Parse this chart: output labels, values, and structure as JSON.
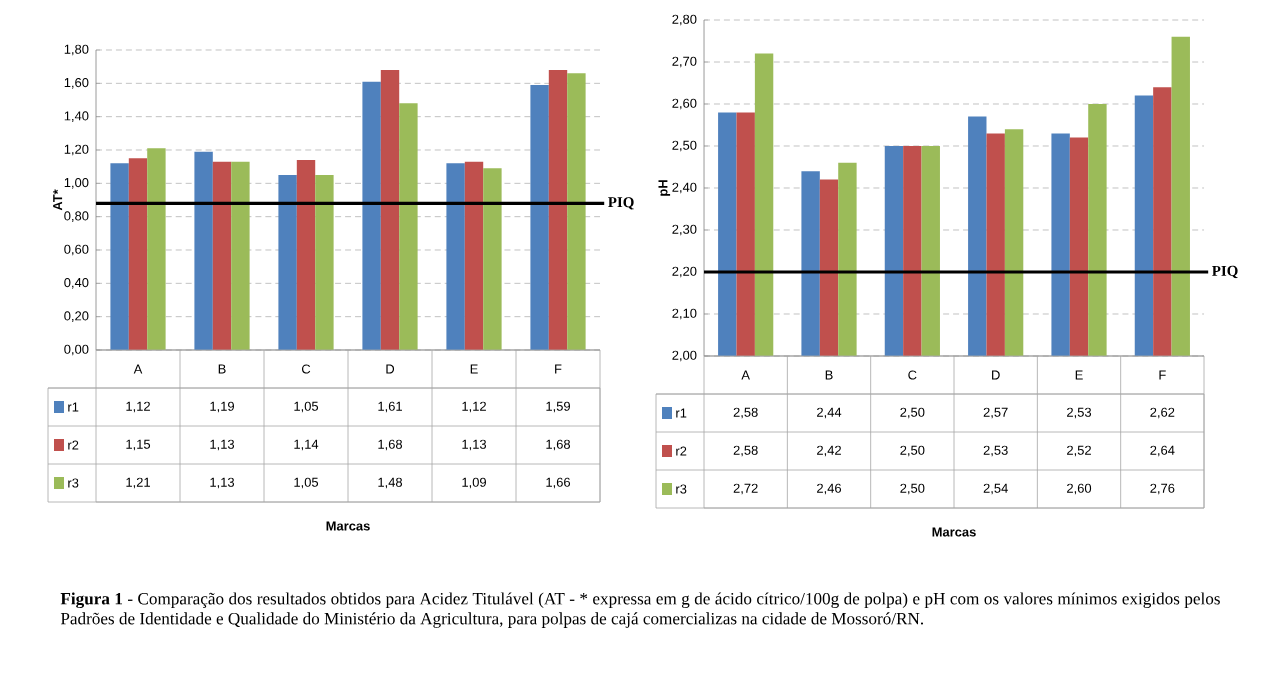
{
  "chart_data": [
    {
      "type": "bar",
      "ylabel": "AT*",
      "xlabel": "Marcas",
      "categories": [
        "A",
        "B",
        "C",
        "D",
        "E",
        "F"
      ],
      "series": [
        {
          "name": "r1",
          "color": "#4f81bd",
          "values": [
            1.12,
            1.19,
            1.05,
            1.61,
            1.12,
            1.59
          ],
          "value_labels": [
            "1,12",
            "1,19",
            "1,05",
            "1,61",
            "1,12",
            "1,59"
          ]
        },
        {
          "name": "r2",
          "color": "#c0504d",
          "values": [
            1.15,
            1.13,
            1.14,
            1.68,
            1.13,
            1.68
          ],
          "value_labels": [
            "1,15",
            "1,13",
            "1,14",
            "1,68",
            "1,13",
            "1,68"
          ]
        },
        {
          "name": "r3",
          "color": "#9bbb59",
          "values": [
            1.21,
            1.13,
            1.05,
            1.48,
            1.09,
            1.66
          ],
          "value_labels": [
            "1,21",
            "1,13",
            "1,05",
            "1,48",
            "1,09",
            "1,66"
          ]
        }
      ],
      "ylim": [
        0,
        1.8
      ],
      "yticks": [
        {
          "value": 0,
          "label": "0,00"
        },
        {
          "value": 0.2,
          "label": "0,20"
        },
        {
          "value": 0.4,
          "label": "0,40"
        },
        {
          "value": 0.6,
          "label": "0,60"
        },
        {
          "value": 0.8,
          "label": "0,80"
        },
        {
          "value": 1.0,
          "label": "1,00"
        },
        {
          "value": 1.2,
          "label": "1,20"
        },
        {
          "value": 1.4,
          "label": "1,40"
        },
        {
          "value": 1.6,
          "label": "1,60"
        },
        {
          "value": 1.8,
          "label": "1,80"
        }
      ],
      "ref_lines": [
        {
          "axis": "y",
          "value": 0.88,
          "label": "PIQ",
          "color": "#000000"
        }
      ],
      "grid": "y",
      "legend": "bottom",
      "annotations": [
        "**Figura 1** - Comparação dos resultados obtidos para Acidez Titulável (AT - * expressa em g de ácido cítrico/100g de polpa) e pH com os valores mínimos exigidos pelos Padrões de Identidade e Qualidade do Ministério da Agricultura, para polpas de cajá comercializas na cidade de Mossoró/RN."
      ]
    },
    {
      "type": "bar",
      "ylabel": "pH",
      "xlabel": "Marcas",
      "categories": [
        "A",
        "B",
        "C",
        "D",
        "E",
        "F"
      ],
      "series": [
        {
          "name": "r1",
          "color": "#4f81bd",
          "values": [
            2.58,
            2.44,
            2.5,
            2.57,
            2.53,
            2.62
          ],
          "value_labels": [
            "2,58",
            "2,44",
            "2,50",
            "2,57",
            "2,53",
            "2,62"
          ]
        },
        {
          "name": "r2",
          "color": "#c0504d",
          "values": [
            2.58,
            2.42,
            2.5,
            2.53,
            2.52,
            2.64
          ],
          "value_labels": [
            "2,58",
            "2,42",
            "2,50",
            "2,53",
            "2,52",
            "2,64"
          ]
        },
        {
          "name": "r3",
          "color": "#9bbb59",
          "values": [
            2.72,
            2.46,
            2.5,
            2.54,
            2.6,
            2.76
          ],
          "value_labels": [
            "2,72",
            "2,46",
            "2,50",
            "2,54",
            "2,60",
            "2,76"
          ]
        }
      ],
      "ylim": [
        2.0,
        2.8
      ],
      "yticks": [
        {
          "value": 2.0,
          "label": "2,00"
        },
        {
          "value": 2.1,
          "label": "2,10"
        },
        {
          "value": 2.2,
          "label": "2,20"
        },
        {
          "value": 2.3,
          "label": "2,30"
        },
        {
          "value": 2.4,
          "label": "2,40"
        },
        {
          "value": 2.5,
          "label": "2,50"
        },
        {
          "value": 2.6,
          "label": "2,60"
        },
        {
          "value": 2.7,
          "label": "2,70"
        },
        {
          "value": 2.8,
          "label": "2,80"
        }
      ],
      "ref_lines": [
        {
          "axis": "y",
          "value": 2.2,
          "label": "PIQ",
          "color": "#000000"
        }
      ],
      "grid": "y",
      "legend": "bottom"
    }
  ]
}
